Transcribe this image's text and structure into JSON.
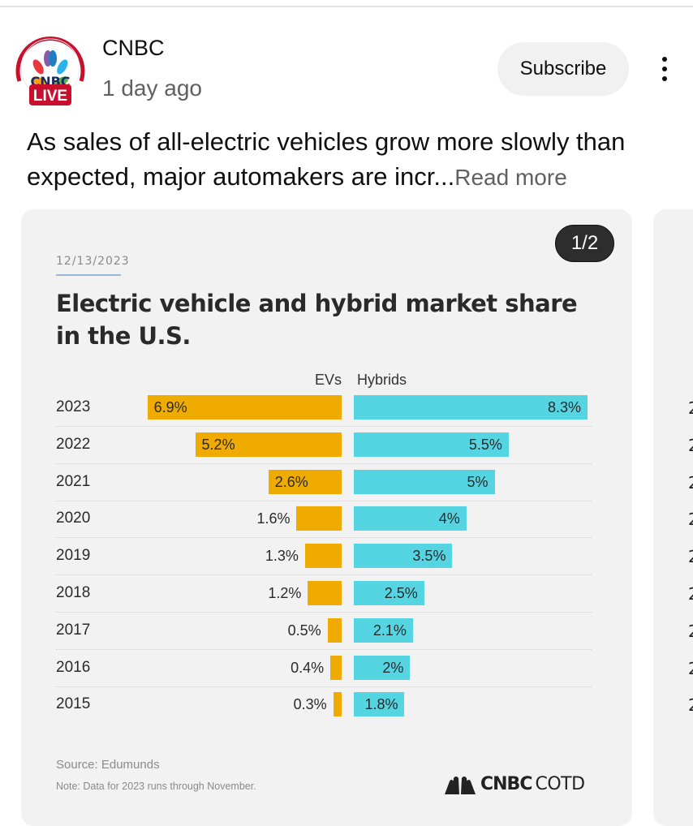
{
  "channel": {
    "name": "CNBC",
    "post_time": "1 day ago",
    "live_badge": "LIVE",
    "avatar_text": "CNBC"
  },
  "actions": {
    "subscribe_label": "Subscribe",
    "more_icon": "more-vert-icon"
  },
  "post": {
    "text": "As sales of all-electric vehicles grow more slowly than expected, major automakers are incr...",
    "read_more_label": "Read more"
  },
  "carousel": {
    "counter": "1/2"
  },
  "card": {
    "date": "12/13/2023",
    "source": "Source: Edumunds",
    "note": "Note: Data for 2023 runs through November.",
    "brand_cnbc": "CNBC",
    "brand_cotd": "COTD"
  },
  "colors": {
    "evs": "#f0ab00",
    "hybrids": "#55d4e2",
    "live_red": "#cc1f1f"
  },
  "chart_data": {
    "type": "bar",
    "orientation": "horizontal-diverging",
    "title": "Electric vehicle and hybrid market share in the U.S.",
    "categories": [
      "2023",
      "2022",
      "2021",
      "2020",
      "2019",
      "2018",
      "2017",
      "2016",
      "2015"
    ],
    "series": [
      {
        "name": "EVs",
        "values": [
          6.9,
          5.2,
          2.6,
          1.6,
          1.3,
          1.2,
          0.5,
          0.4,
          0.3
        ],
        "labels": [
          "6.9%",
          "5.2%",
          "2.6%",
          "1.6%",
          "1.3%",
          "1.2%",
          "0.5%",
          "0.4%",
          "0.3%"
        ]
      },
      {
        "name": "Hybrids",
        "values": [
          8.3,
          5.5,
          5.0,
          4.0,
          3.5,
          2.5,
          2.1,
          2.0,
          1.8
        ],
        "labels": [
          "8.3%",
          "5.5%",
          "5%",
          "4%",
          "3.5%",
          "2.5%",
          "2.1%",
          "2%",
          "1.8%"
        ]
      }
    ],
    "xlabel": "",
    "ylabel": "",
    "unit": "%",
    "grid": "dotted row separators",
    "legend": "top-center"
  },
  "peek_card": {
    "year_fragments": [
      "2",
      "2",
      "2",
      "2",
      "2",
      "2",
      "2",
      "2",
      "2"
    ]
  }
}
